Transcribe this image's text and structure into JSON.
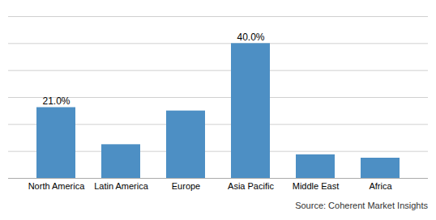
{
  "chart_data": {
    "type": "bar",
    "categories": [
      "North America",
      "Latin America",
      "Europe",
      "Asia Pacific",
      "Middle East",
      "Africa"
    ],
    "values": [
      21.0,
      10.0,
      20.0,
      40.0,
      7.0,
      6.0
    ],
    "color": "#4d8fc4",
    "ylim": [
      0,
      48
    ],
    "yticks": [
      0,
      8,
      16,
      24,
      32,
      40,
      48
    ],
    "grid": true,
    "tick_labels": "x",
    "annotations": [
      {
        "category": "North America",
        "value": 21.0,
        "label": "21.0%"
      },
      {
        "category": "Asia Pacific",
        "value": 40.0,
        "label": "40.0%"
      }
    ],
    "source": "Source: Coherent Market Insights"
  }
}
